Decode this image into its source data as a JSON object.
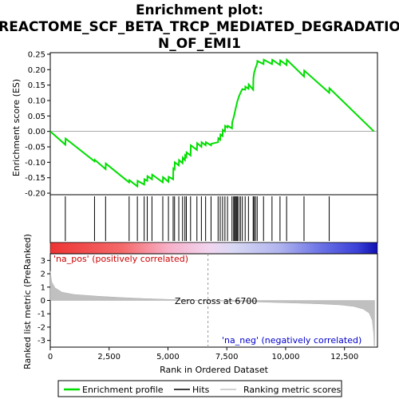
{
  "chart_data": {
    "type": "line",
    "title_line1": "Enrichment plot:",
    "title_line2": "REACTOME_SCF_BETA_TRCP_MEDIATED_DEGRADATIO",
    "title_line3": "N_OF_EMI1",
    "es_ylabel": "Enrichment score (ES)",
    "metric_ylabel_line1": "Ranked list metric (PreRanked)",
    "xlabel": "Rank in Ordered Dataset",
    "xlim": [
      0,
      13900
    ],
    "es_ylim": [
      -0.205,
      0.255
    ],
    "metric_ylim": [
      -3.5,
      3.5
    ],
    "x_ticks": [
      0,
      2500,
      5000,
      7500,
      10000,
      12500
    ],
    "x_tick_labels": [
      "0",
      "2,500",
      "5,000",
      "7,500",
      "10,000",
      "12,500"
    ],
    "es_ticks": [
      -0.2,
      -0.15,
      -0.1,
      -0.05,
      0.0,
      0.05,
      0.1,
      0.15,
      0.2,
      0.25
    ],
    "es_tick_labels": [
      "-0.20",
      "-0.15",
      "-0.10",
      "-0.05",
      "0.00",
      "0.05",
      "0.10",
      "0.15",
      "0.20",
      "0.25"
    ],
    "metric_ticks": [
      -3,
      -2,
      -1,
      0,
      1,
      2,
      3
    ],
    "metric_tick_labels": [
      "-3",
      "-2",
      "-1",
      "0",
      "1",
      "2",
      "3"
    ],
    "pos_label": "'na_pos' (positively correlated)",
    "neg_label": "'na_neg' (negatively correlated)",
    "zero_cross_label": "Zero cross at 6700",
    "zero_cross": 6700,
    "total_genes": 13800,
    "hits": [
      640,
      1880,
      2350,
      3350,
      3700,
      3990,
      4120,
      4320,
      4780,
      5020,
      5220,
      5280,
      5460,
      5620,
      5720,
      5780,
      5960,
      6230,
      6420,
      6600,
      6830,
      7130,
      7220,
      7320,
      7420,
      7530,
      7720,
      7790,
      7830,
      7870,
      7910,
      7950,
      8010,
      8080,
      8160,
      8280,
      8420,
      8620,
      8660,
      8720,
      8790,
      9060,
      9420,
      9760,
      10040,
      10780,
      11850
    ],
    "es_points": [
      [
        0,
        0.0
      ],
      [
        640,
        -0.043
      ],
      [
        650,
        -0.023
      ],
      [
        1880,
        -0.097
      ],
      [
        1890,
        -0.092
      ],
      [
        2350,
        -0.122
      ],
      [
        2360,
        -0.104
      ],
      [
        3350,
        -0.165
      ],
      [
        3360,
        -0.158
      ],
      [
        3700,
        -0.178
      ],
      [
        3710,
        -0.16
      ],
      [
        3990,
        -0.172
      ],
      [
        4000,
        -0.155
      ],
      [
        4120,
        -0.16
      ],
      [
        4130,
        -0.145
      ],
      [
        4320,
        -0.155
      ],
      [
        4330,
        -0.14
      ],
      [
        4780,
        -0.165
      ],
      [
        4790,
        -0.148
      ],
      [
        5020,
        -0.163
      ],
      [
        5030,
        -0.147
      ],
      [
        5220,
        -0.155
      ],
      [
        5230,
        -0.12
      ],
      [
        5280,
        -0.123
      ],
      [
        5290,
        -0.1
      ],
      [
        5460,
        -0.11
      ],
      [
        5470,
        -0.093
      ],
      [
        5620,
        -0.103
      ],
      [
        5630,
        -0.085
      ],
      [
        5720,
        -0.093
      ],
      [
        5730,
        -0.078
      ],
      [
        5780,
        -0.083
      ],
      [
        5790,
        -0.068
      ],
      [
        5960,
        -0.078
      ],
      [
        5970,
        -0.045
      ],
      [
        6230,
        -0.06
      ],
      [
        6240,
        -0.038
      ],
      [
        6420,
        -0.05
      ],
      [
        6430,
        -0.035
      ],
      [
        6600,
        -0.045
      ],
      [
        6610,
        -0.035
      ],
      [
        6830,
        -0.045
      ],
      [
        6840,
        -0.04
      ],
      [
        7130,
        -0.035
      ],
      [
        7140,
        -0.022
      ],
      [
        7220,
        -0.027
      ],
      [
        7230,
        -0.01
      ],
      [
        7320,
        -0.015
      ],
      [
        7330,
        0.005
      ],
      [
        7420,
        0.0
      ],
      [
        7430,
        0.018
      ],
      [
        7530,
        0.013
      ],
      [
        7540,
        0.018
      ],
      [
        7720,
        0.01
      ],
      [
        7730,
        0.03
      ],
      [
        7790,
        0.045
      ],
      [
        7830,
        0.058
      ],
      [
        7870,
        0.072
      ],
      [
        7910,
        0.085
      ],
      [
        7950,
        0.098
      ],
      [
        8010,
        0.112
      ],
      [
        8080,
        0.125
      ],
      [
        8160,
        0.137
      ],
      [
        8280,
        0.135
      ],
      [
        8290,
        0.145
      ],
      [
        8420,
        0.138
      ],
      [
        8430,
        0.152
      ],
      [
        8620,
        0.135
      ],
      [
        8630,
        0.172
      ],
      [
        8660,
        0.19
      ],
      [
        8720,
        0.205
      ],
      [
        8790,
        0.22
      ],
      [
        8800,
        0.228
      ],
      [
        9060,
        0.218
      ],
      [
        9070,
        0.232
      ],
      [
        9420,
        0.218
      ],
      [
        9430,
        0.232
      ],
      [
        9760,
        0.215
      ],
      [
        9770,
        0.23
      ],
      [
        10040,
        0.215
      ],
      [
        10050,
        0.232
      ],
      [
        10780,
        0.178
      ],
      [
        10790,
        0.197
      ],
      [
        11850,
        0.125
      ],
      [
        11860,
        0.14
      ],
      [
        13750,
        0.0
      ]
    ],
    "metric_profile": [
      [
        0,
        2.2
      ],
      [
        60,
        1.4
      ],
      [
        200,
        0.95
      ],
      [
        500,
        0.62
      ],
      [
        1000,
        0.45
      ],
      [
        2000,
        0.32
      ],
      [
        3000,
        0.22
      ],
      [
        4000,
        0.14
      ],
      [
        5000,
        0.08
      ],
      [
        6000,
        0.03
      ],
      [
        6700,
        0.0
      ],
      [
        7500,
        -0.05
      ],
      [
        8500,
        -0.1
      ],
      [
        9500,
        -0.15
      ],
      [
        10500,
        -0.2
      ],
      [
        11500,
        -0.26
      ],
      [
        12300,
        -0.33
      ],
      [
        12900,
        -0.45
      ],
      [
        13300,
        -0.65
      ],
      [
        13550,
        -0.95
      ],
      [
        13680,
        -1.5
      ],
      [
        13740,
        -2.5
      ],
      [
        13760,
        -3.4
      ],
      [
        13780,
        -3.4
      ]
    ],
    "legend": [
      {
        "label": "Enrichment profile",
        "color": "#00dd00"
      },
      {
        "label": "Hits",
        "color": "#000000"
      },
      {
        "label": "Ranking metric scores",
        "color": "#c0c0c0"
      }
    ],
    "colors": {
      "es_line": "#00dd00",
      "hit": "#000000",
      "metric": "#c0c0c0",
      "zero_line": "#999999",
      "pos_text": "#cc0000",
      "neg_text": "#0000cc"
    }
  }
}
